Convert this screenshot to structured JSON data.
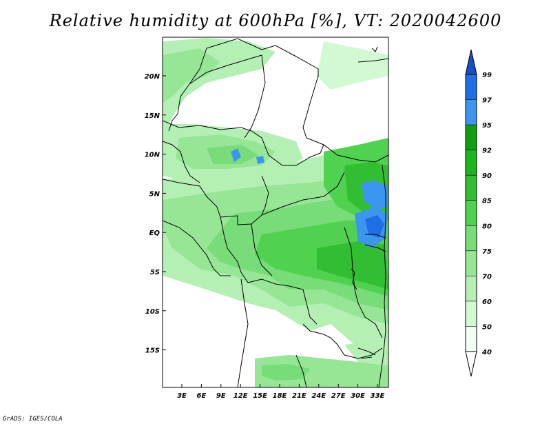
{
  "title": "Relative humidity at 600hPa [%], VT: 2020042600",
  "credit": "GrADS: IGES/COLA",
  "map": {
    "lon_labels": [
      "3E",
      "6E",
      "9E",
      "12E",
      "15E",
      "18E",
      "21E",
      "24E",
      "27E",
      "30E",
      "33E"
    ],
    "lat_labels": [
      "20N",
      "15N",
      "10N",
      "5N",
      "EQ",
      "5S",
      "10S",
      "15S"
    ]
  },
  "colorbar": {
    "levels": [
      "40",
      "50",
      "60",
      "70",
      "75",
      "80",
      "85",
      "90",
      "92",
      "95",
      "97",
      "99"
    ],
    "colors": [
      "#f0fff0",
      "#d2fad2",
      "#b4f0b4",
      "#96e696",
      "#78dc78",
      "#50d250",
      "#32be32",
      "#1eb41e",
      "#0fa00f",
      "#3c96f0",
      "#1e6ee6",
      "#1450c8"
    ]
  }
}
